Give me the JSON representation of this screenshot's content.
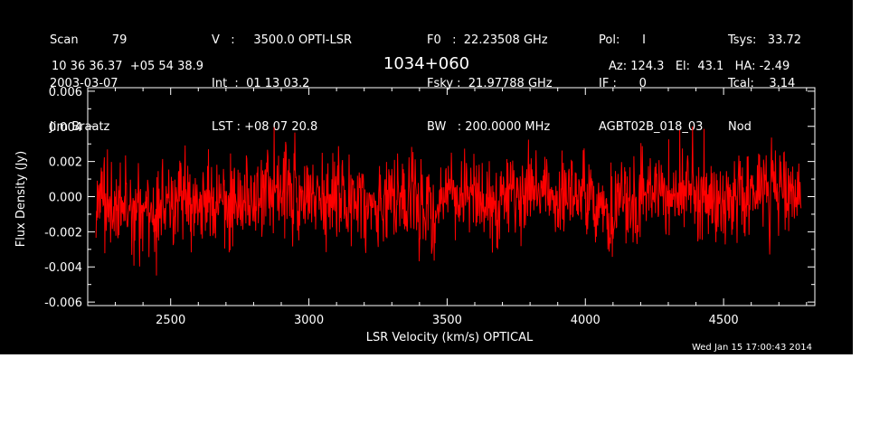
{
  "header": {
    "col1": [
      "Scan         79",
      "2003-03-07",
      "Jim Braatz"
    ],
    "col2": [
      "V   :     3500.0 OPTI-LSR",
      "Int  :  01 13 03.2",
      "LST : +08 07 20.8"
    ],
    "col3": [
      "F0   :  22.23508 GHz",
      "Fsky :  21.97788 GHz",
      "BW   : 200.0000 MHz"
    ],
    "col4": [
      "Pol:      I",
      "IF :      0",
      "AGBT02B_018_03"
    ],
    "col4_right": [
      "Tsys:   33.72",
      "Tcal:    3.14",
      "Nod"
    ],
    "coords": "10 36 36.37  +05 54 38.9",
    "source": "1034+060",
    "azel": "Az: 124.3   El:  43.1   HA: -2.49"
  },
  "timestamp": "Wed Jan 15 17:00:43 2014",
  "colors": {
    "background": "#000000",
    "axis": "#ffffff",
    "trace": "#ff0000"
  },
  "chart_data": {
    "type": "line",
    "xlabel": "LSR Velocity (km/s) OPTICAL",
    "ylabel": "Flux Density (Jy)",
    "xlim": [
      2200,
      4830
    ],
    "ylim": [
      -0.0062,
      0.0062
    ],
    "xticks": [
      2500,
      3000,
      3500,
      4000,
      4500
    ],
    "yticks": [
      -0.006,
      -0.004,
      -0.002,
      0.0,
      0.002,
      0.004,
      0.006
    ],
    "ytick_labels": [
      "-0.006",
      "-0.004",
      "-0.002",
      "0.000",
      "0.002",
      "0.004",
      "0.006"
    ],
    "x_range": [
      2230,
      4780
    ],
    "grid": false,
    "series": [
      {
        "noise_rms": 0.0012,
        "mean": 0.0
      }
    ]
  }
}
